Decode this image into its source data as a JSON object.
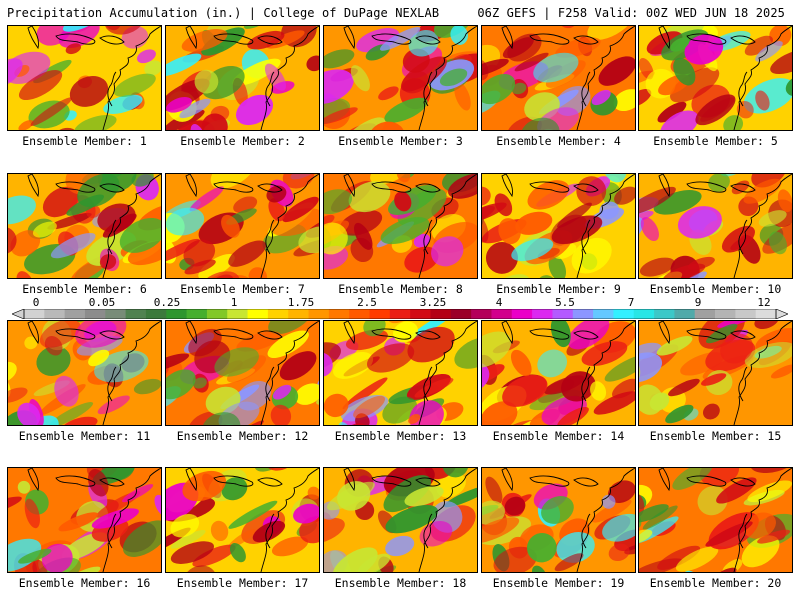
{
  "header": {
    "title": "Precipitation Accumulation (in.) | College of DuPage NEXLAB",
    "run_info": "06Z GEFS | F258 Valid: 00Z WED JUN 18 2025"
  },
  "legend": {
    "labels": [
      "0",
      "0.05",
      "0.25",
      "1",
      "1.75",
      "2.5",
      "3.25",
      "4",
      "5.5",
      "7",
      "9",
      "12"
    ],
    "colors": [
      "#d2d2d2",
      "#b9b9b9",
      "#a0a0a0",
      "#8c8c8c",
      "#788c78",
      "#508250",
      "#3c7a3c",
      "#2e962e",
      "#46af2e",
      "#82c828",
      "#c8e632",
      "#ffff00",
      "#ffd200",
      "#ffb400",
      "#ff9600",
      "#ff7800",
      "#ff5a00",
      "#ff3c00",
      "#eb1e14",
      "#d20a14",
      "#b40014",
      "#9b0028",
      "#b4005a",
      "#d2008c",
      "#eb00c8",
      "#dc28f0",
      "#b45aff",
      "#8c96ff",
      "#64c8ff",
      "#32f0ff",
      "#28e6e6",
      "#3cc8c8",
      "#50aaaa",
      "#a0a0a0",
      "#b4b4b4",
      "#c8c8c8",
      "#dcdcdc"
    ]
  },
  "members": [
    {
      "label": "Ensemble Member: 1"
    },
    {
      "label": "Ensemble Member: 2"
    },
    {
      "label": "Ensemble Member: 3"
    },
    {
      "label": "Ensemble Member: 4"
    },
    {
      "label": "Ensemble Member: 5"
    },
    {
      "label": "Ensemble Member: 6"
    },
    {
      "label": "Ensemble Member: 7"
    },
    {
      "label": "Ensemble Member: 8"
    },
    {
      "label": "Ensemble Member: 9"
    },
    {
      "label": "Ensemble Member: 10"
    },
    {
      "label": "Ensemble Member: 11"
    },
    {
      "label": "Ensemble Member: 12"
    },
    {
      "label": "Ensemble Member: 13"
    },
    {
      "label": "Ensemble Member: 14"
    },
    {
      "label": "Ensemble Member: 15"
    },
    {
      "label": "Ensemble Member: 16"
    },
    {
      "label": "Ensemble Member: 17"
    },
    {
      "label": "Ensemble Member: 18"
    },
    {
      "label": "Ensemble Member: 19"
    },
    {
      "label": "Ensemble Member: 20"
    }
  ]
}
